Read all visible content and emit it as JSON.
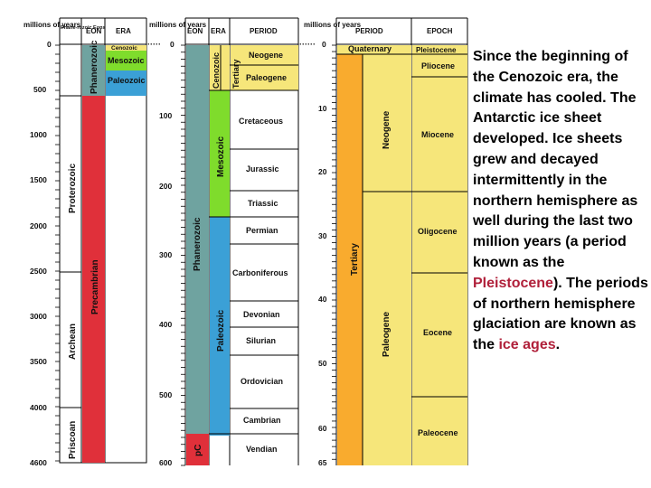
{
  "panel1": {
    "headers": {
      "years": "millions of years",
      "pre": "Phane-rozoic Eons",
      "eon": "EON",
      "era": "ERA"
    },
    "ticks": [
      "0",
      "500",
      "1000",
      "1500",
      "2000",
      "2500",
      "3000",
      "3500",
      "4000",
      "4600"
    ],
    "eons": [
      "Phanerozoic",
      "Proterozoic",
      "Archean",
      "Priscoan"
    ],
    "super_eon": "Precambrian",
    "eras": [
      "Cenozoic",
      "Mesozoic",
      "Paleozoic"
    ]
  },
  "panel2": {
    "headers": {
      "years": "millions of years",
      "eon": "EON",
      "era": "ERA",
      "period": "PERIOD"
    },
    "ticks": [
      "0",
      "100",
      "200",
      "300",
      "400",
      "500",
      "600"
    ],
    "eon": "Phanerozoic",
    "pc": "pC",
    "eras": [
      "Cenozoic",
      "Mesozoic",
      "Paleozoic"
    ],
    "tertiary": "Tertiary",
    "periods": [
      "Neogene",
      "Paleogene",
      "Cretaceous",
      "Jurassic",
      "Triassic",
      "Permian",
      "Carboniferous",
      "Devonian",
      "Silurian",
      "Ordovician",
      "Cambrian",
      "Vendian"
    ]
  },
  "panel3": {
    "headers": {
      "years": "millions of years",
      "period": "PERIOD",
      "epoch": "EPOCH"
    },
    "ticks": [
      "0",
      "10",
      "20",
      "30",
      "40",
      "50",
      "60",
      "65"
    ],
    "quaternary": "Quaternary",
    "tertiary": "Tertiary",
    "subperiods": [
      "Neogene",
      "Paleogene"
    ],
    "epochs": [
      "Pleistocene",
      "Pliocene",
      "Miocene",
      "Oligocene",
      "Eocene",
      "Paleocene"
    ]
  },
  "caption": {
    "part1": "Since the beginning of the Cenozoic era, the climate has cooled.  The Antarctic ice sheet developed.  Ice sheets grew and decayed intermittently in the northern hemisphere as well during the last two million years (a period known as the ",
    "highlight1": "Pleistocene",
    "part2": ").  The periods of northern hemisphere glaciation are known as the ",
    "highlight2": "ice ages",
    "part3": "."
  }
}
